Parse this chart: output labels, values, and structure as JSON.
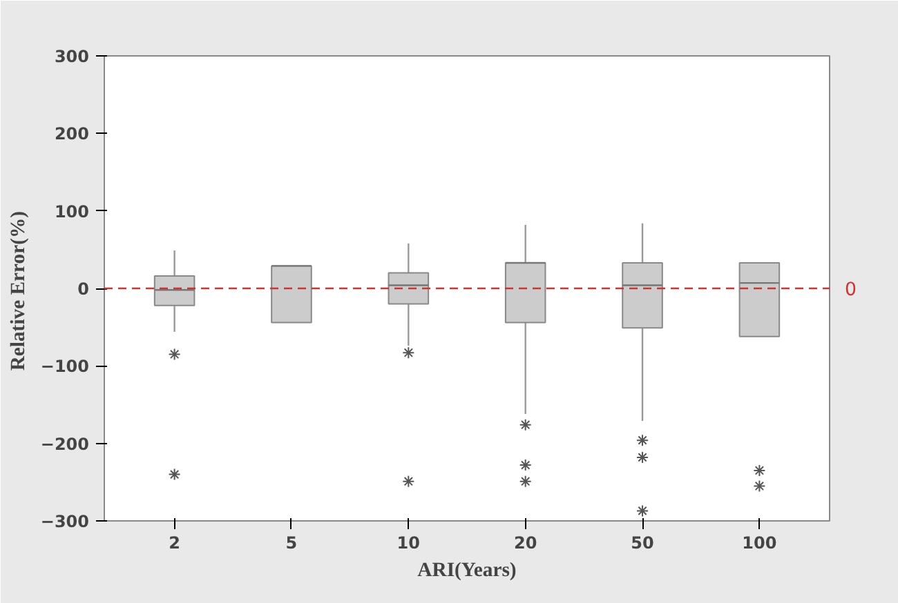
{
  "chart_data": {
    "type": "box",
    "xlabel": "ARI(Years)",
    "ylabel": "Relative  Error(%)",
    "categories": [
      "2",
      "5",
      "10",
      "20",
      "50",
      "100"
    ],
    "boxes": [
      {
        "low": -56,
        "q1": -22,
        "median": -2,
        "q3": 16,
        "high": 49,
        "outliers": [
          -85,
          -240
        ]
      },
      {
        "low": -44,
        "q1": -44,
        "median": 29,
        "q3": 29,
        "high": 29
      },
      {
        "low": -74,
        "q1": -20,
        "median": 4,
        "q3": 20,
        "high": 58,
        "outliers": [
          -83,
          -249
        ]
      },
      {
        "low": -162,
        "q1": -44,
        "median": 33,
        "q3": 33,
        "high": 82,
        "outliers": [
          -176,
          -228,
          -249
        ]
      },
      {
        "low": -171,
        "q1": -51,
        "median": 4,
        "q3": 33,
        "high": 84,
        "outliers": [
          -196,
          -218,
          -287
        ]
      },
      {
        "low": -62,
        "q1": -62,
        "median": 7,
        "q3": 33,
        "high": 33,
        "outliers": [
          -235,
          -255
        ]
      }
    ],
    "color": "#cccccc",
    "ylim": [
      -300,
      300
    ],
    "yticks": [
      -300,
      -200,
      -100,
      0,
      100,
      200,
      300
    ],
    "ref_lines": [
      {
        "axis": "y",
        "value": 0,
        "label": "0",
        "color": "#cc3333",
        "line_style": "dashed"
      }
    ],
    "grid": false
  }
}
